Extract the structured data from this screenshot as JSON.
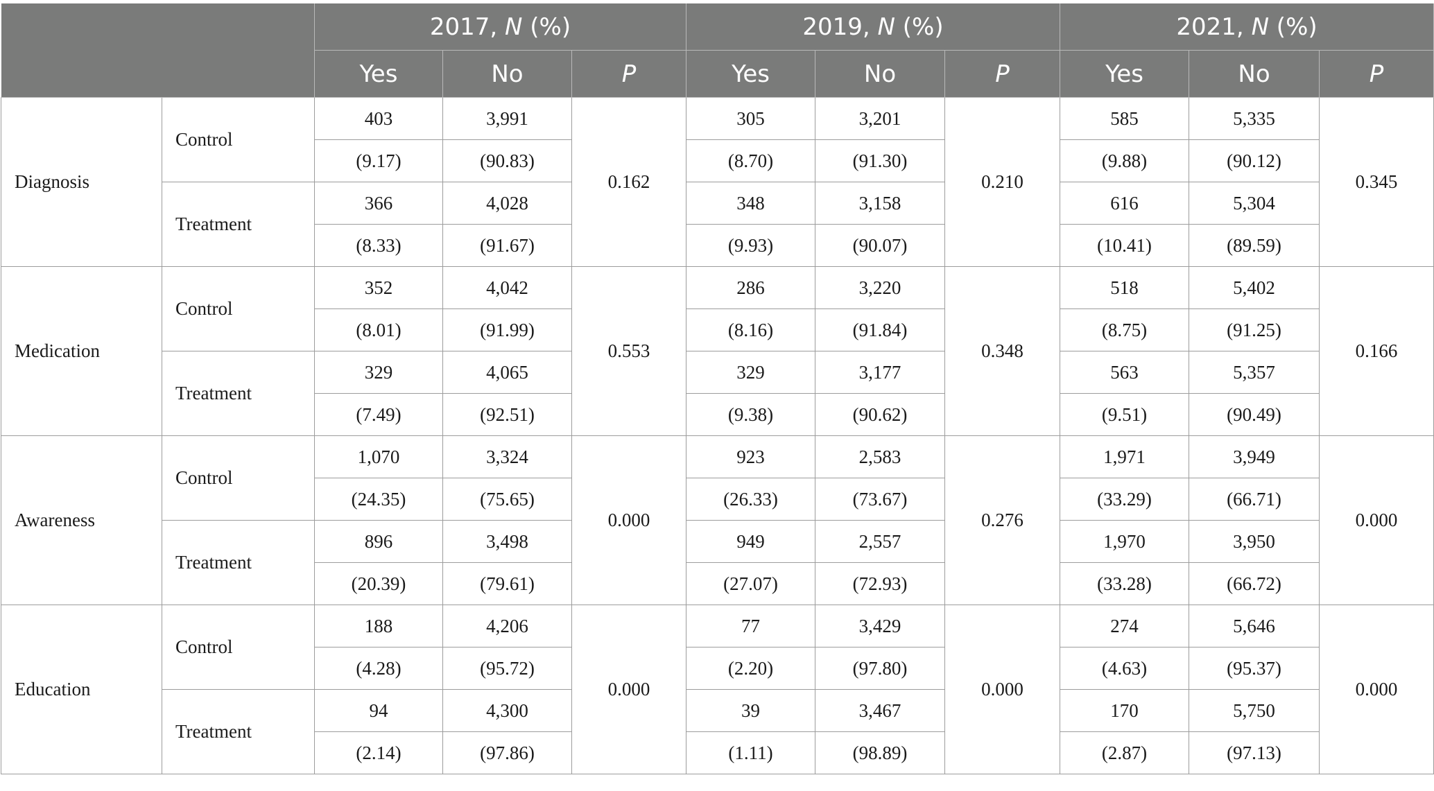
{
  "table": {
    "years": [
      {
        "year": "2017, ",
        "n": "N",
        "pct": " (%)"
      },
      {
        "year": "2019, ",
        "n": "N",
        "pct": " (%)"
      },
      {
        "year": "2021, ",
        "n": "N",
        "pct": " (%)"
      }
    ],
    "subheaders": {
      "yes": "Yes",
      "no": "No",
      "p": "P"
    },
    "sections": [
      {
        "label": "Diagnosis",
        "groups": [
          {
            "label": "Control",
            "counts": [
              [
                "403",
                "3,991"
              ],
              [
                "305",
                "3,201"
              ],
              [
                "585",
                "5,335"
              ]
            ],
            "pcts": [
              [
                "(9.17)",
                "(90.83)"
              ],
              [
                "(8.70)",
                "(91.30)"
              ],
              [
                "(9.88)",
                "(90.12)"
              ]
            ]
          },
          {
            "label": "Treatment",
            "counts": [
              [
                "366",
                "4,028"
              ],
              [
                "348",
                "3,158"
              ],
              [
                "616",
                "5,304"
              ]
            ],
            "pcts": [
              [
                "(8.33)",
                "(91.67)"
              ],
              [
                "(9.93)",
                "(90.07)"
              ],
              [
                "(10.41)",
                "(89.59)"
              ]
            ]
          }
        ],
        "p": [
          "0.162",
          "0.210",
          "0.345"
        ]
      },
      {
        "label": "Medication",
        "groups": [
          {
            "label": "Control",
            "counts": [
              [
                "352",
                "4,042"
              ],
              [
                "286",
                "3,220"
              ],
              [
                "518",
                "5,402"
              ]
            ],
            "pcts": [
              [
                "(8.01)",
                "(91.99)"
              ],
              [
                "(8.16)",
                "(91.84)"
              ],
              [
                "(8.75)",
                "(91.25)"
              ]
            ]
          },
          {
            "label": "Treatment",
            "counts": [
              [
                "329",
                "4,065"
              ],
              [
                "329",
                "3,177"
              ],
              [
                "563",
                "5,357"
              ]
            ],
            "pcts": [
              [
                "(7.49)",
                "(92.51)"
              ],
              [
                "(9.38)",
                "(90.62)"
              ],
              [
                "(9.51)",
                "(90.49)"
              ]
            ]
          }
        ],
        "p": [
          "0.553",
          "0.348",
          "0.166"
        ]
      },
      {
        "label": "Awareness",
        "groups": [
          {
            "label": "Control",
            "counts": [
              [
                "1,070",
                "3,324"
              ],
              [
                "923",
                "2,583"
              ],
              [
                "1,971",
                "3,949"
              ]
            ],
            "pcts": [
              [
                "(24.35)",
                "(75.65)"
              ],
              [
                "(26.33)",
                "(73.67)"
              ],
              [
                "(33.29)",
                "(66.71)"
              ]
            ]
          },
          {
            "label": "Treatment",
            "counts": [
              [
                "896",
                "3,498"
              ],
              [
                "949",
                "2,557"
              ],
              [
                "1,970",
                "3,950"
              ]
            ],
            "pcts": [
              [
                "(20.39)",
                "(79.61)"
              ],
              [
                "(27.07)",
                "(72.93)"
              ],
              [
                "(33.28)",
                "(66.72)"
              ]
            ]
          }
        ],
        "p": [
          "0.000",
          "0.276",
          "0.000"
        ]
      },
      {
        "label": "Education",
        "groups": [
          {
            "label": "Control",
            "counts": [
              [
                "188",
                "4,206"
              ],
              [
                "77",
                "3,429"
              ],
              [
                "274",
                "5,646"
              ]
            ],
            "pcts": [
              [
                "(4.28)",
                "(95.72)"
              ],
              [
                "(2.20)",
                "(97.80)"
              ],
              [
                "(4.63)",
                "(95.37)"
              ]
            ]
          },
          {
            "label": "Treatment",
            "counts": [
              [
                "94",
                "4,300"
              ],
              [
                "39",
                "3,467"
              ],
              [
                "170",
                "5,750"
              ]
            ],
            "pcts": [
              [
                "(2.14)",
                "(97.86)"
              ],
              [
                "(1.11)",
                "(98.89)"
              ],
              [
                "(2.87)",
                "(97.13)"
              ]
            ]
          }
        ],
        "p": [
          "0.000",
          "0.000",
          "0.000"
        ]
      }
    ]
  }
}
